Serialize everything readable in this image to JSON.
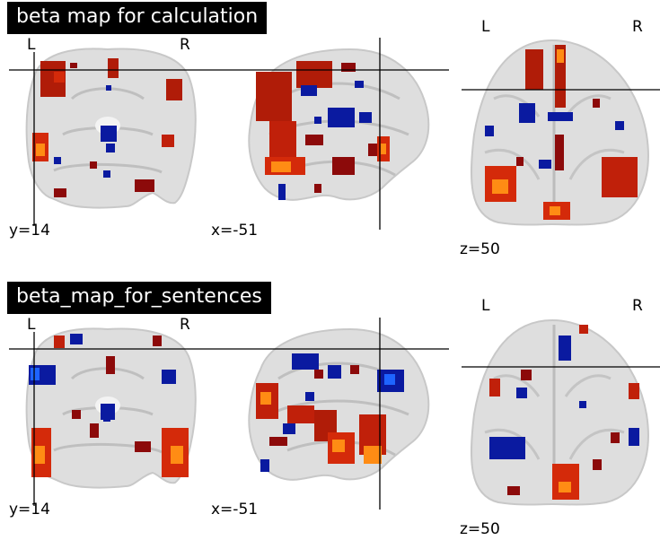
{
  "colors": {
    "background": "#ffffff",
    "brain_light": "#e0e0e0",
    "brain_mid": "#bdbdbd",
    "positive_low": "#8c0a0a",
    "positive_mid": "#d42a0a",
    "positive_high": "#ff8c14",
    "negative": "#0a1aa0",
    "negative_high": "#1e64ff",
    "crosshair": "#000000"
  },
  "panels": [
    {
      "title": "beta map for calculation",
      "coronal": {
        "left_label": "L",
        "right_label": "R",
        "coord_label": "y=14"
      },
      "sagittal": {
        "coord_label": "x=-51"
      },
      "axial": {
        "left_label": "L",
        "right_label": "R",
        "coord_label": "z=50"
      }
    },
    {
      "title": "beta_map_for_sentences",
      "coronal": {
        "left_label": "L",
        "right_label": "R",
        "coord_label": "y=14"
      },
      "sagittal": {
        "coord_label": "x=-51"
      },
      "axial": {
        "left_label": "L",
        "right_label": "R",
        "coord_label": "z=50"
      }
    }
  ]
}
